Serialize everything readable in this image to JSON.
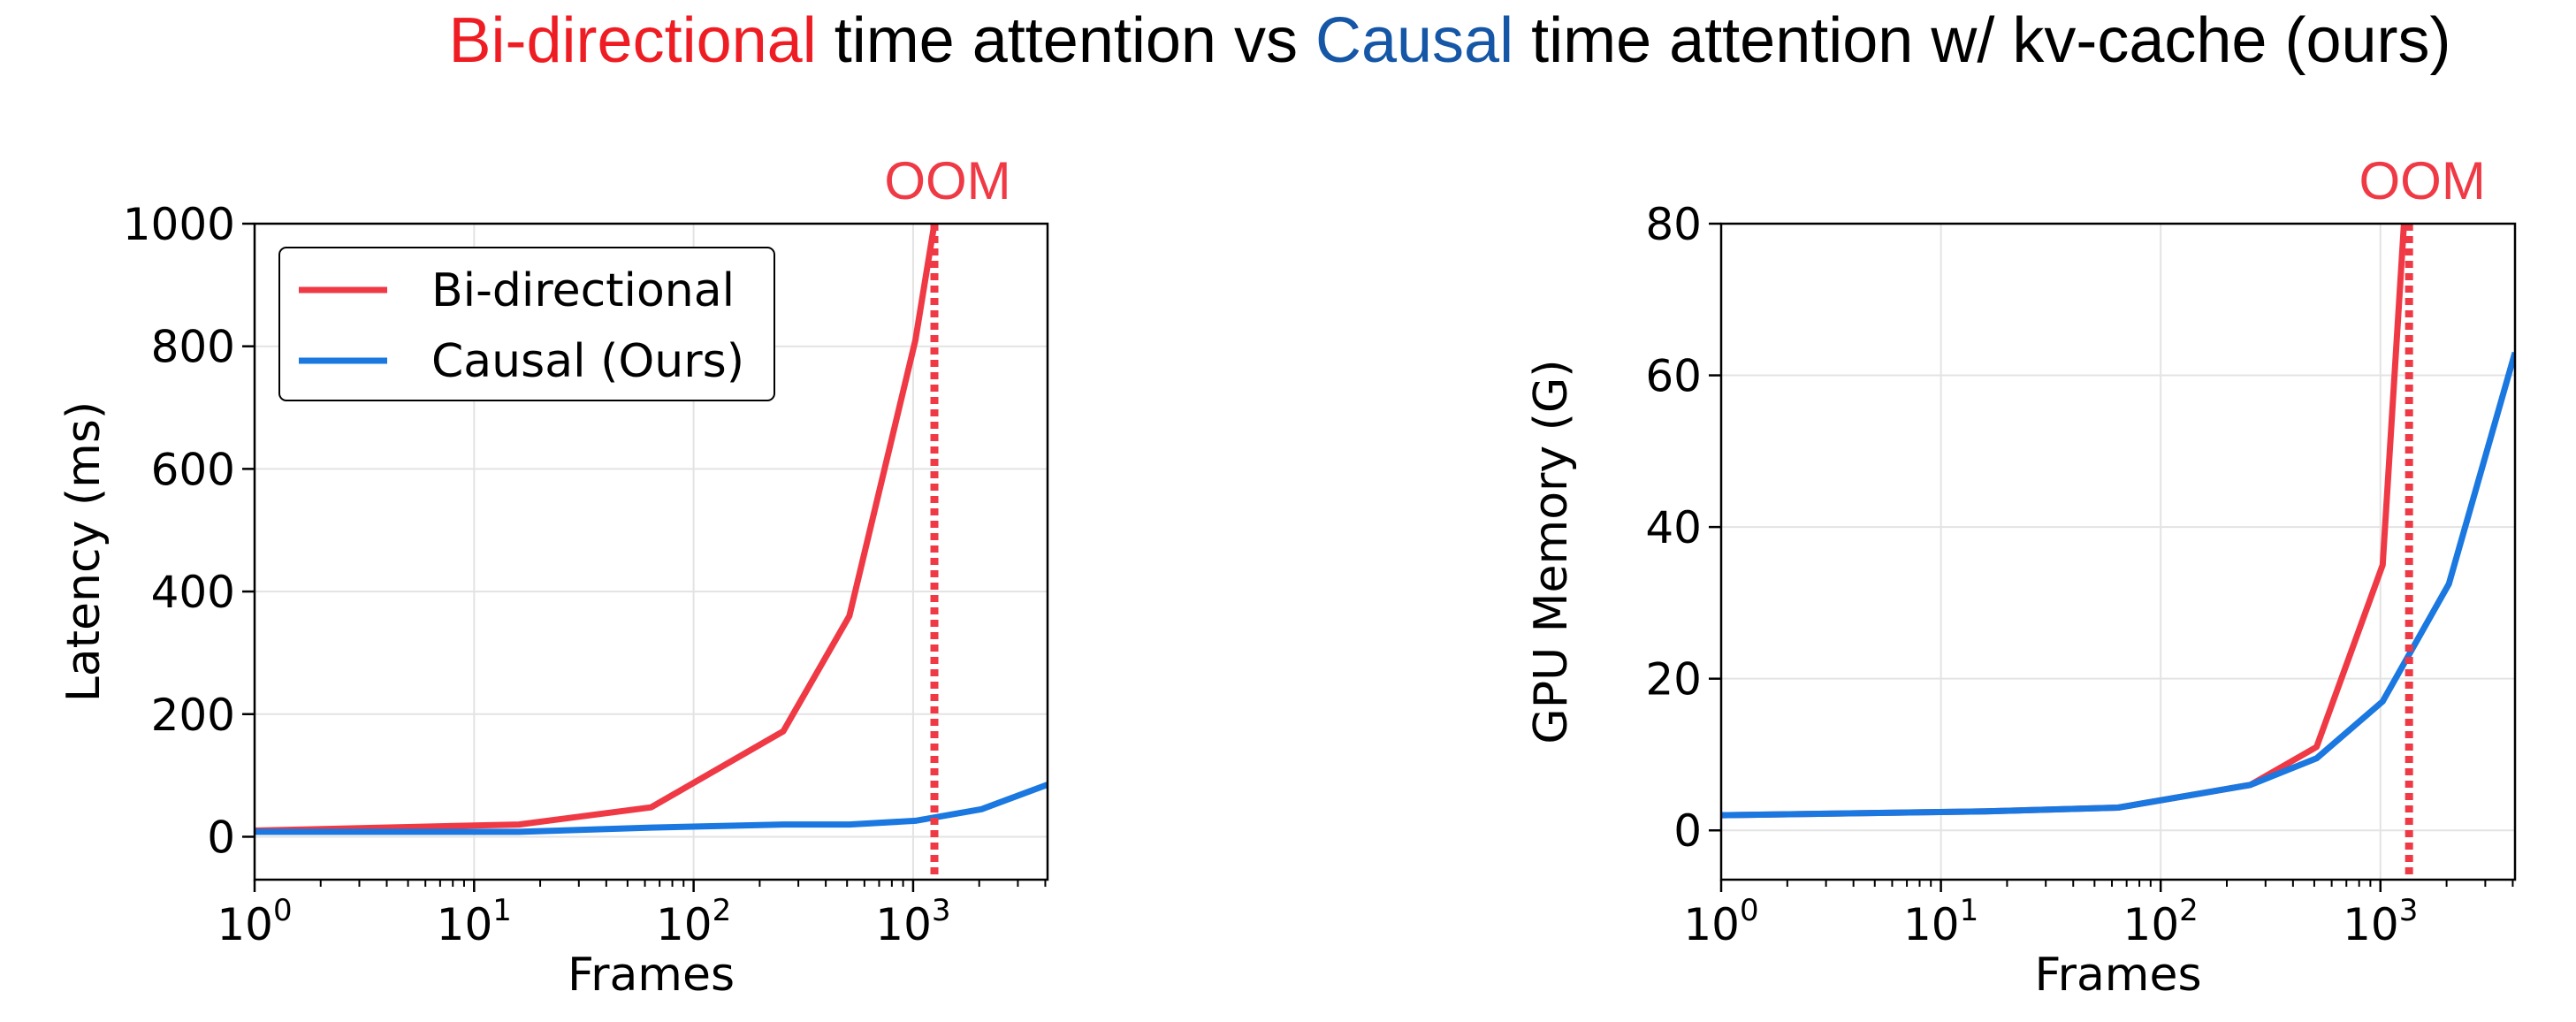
{
  "title": {
    "parts": [
      {
        "text": "Bi-directional",
        "color": "#ee1d23"
      },
      {
        "text": " time attention vs ",
        "color": "#000000"
      },
      {
        "text": "Causal",
        "color": "#1557a6"
      },
      {
        "text": " time attention w/ kv-cache (ours)",
        "color": "#000000"
      }
    ]
  },
  "chart_data": [
    {
      "type": "line",
      "xscale": "log",
      "xlabel": "Frames",
      "ylabel": "Latency (ms)",
      "xlim": [
        1,
        4096
      ],
      "ylim": [
        -70,
        1000
      ],
      "xticks": [
        1,
        10,
        100,
        1000
      ],
      "yticks": [
        0,
        200,
        400,
        600,
        800,
        1000
      ],
      "grid": true,
      "legend": {
        "position": "upper-left",
        "entries": [
          "Bi-directional",
          "Causal (Ours)"
        ]
      },
      "oom_label": "OOM",
      "oom_x": 1250,
      "series": [
        {
          "name": "Bi-directional",
          "color": "#ef3a46",
          "x": [
            1,
            16,
            64,
            256,
            512,
            1024,
            1250
          ],
          "y": [
            10,
            20,
            48,
            172,
            360,
            810,
            1000
          ]
        },
        {
          "name": "Causal (Ours)",
          "color": "#1a78e0",
          "x": [
            1,
            16,
            64,
            256,
            512,
            1024,
            2048,
            4096
          ],
          "y": [
            8,
            8,
            15,
            20,
            20,
            26,
            45,
            85
          ]
        }
      ]
    },
    {
      "type": "line",
      "xscale": "log",
      "xlabel": "Frames",
      "ylabel": "GPU Memory (G)",
      "xlim": [
        1,
        4096
      ],
      "ylim": [
        -6.5,
        80
      ],
      "xticks": [
        1,
        10,
        100,
        1000
      ],
      "yticks": [
        0,
        20,
        40,
        60,
        80
      ],
      "grid": true,
      "oom_label": "OOM",
      "oom_x": 1350,
      "series": [
        {
          "name": "Bi-directional",
          "color": "#ef3a46",
          "x": [
            1,
            16,
            64,
            256,
            512,
            1024,
            1280
          ],
          "y": [
            2,
            2.5,
            3,
            6,
            11,
            35,
            80
          ]
        },
        {
          "name": "Causal (Ours)",
          "color": "#1a78e0",
          "x": [
            1,
            16,
            64,
            256,
            512,
            1024,
            2048,
            4096
          ],
          "y": [
            2,
            2.5,
            3,
            6,
            9.5,
            17,
            32.5,
            63
          ]
        }
      ]
    }
  ]
}
